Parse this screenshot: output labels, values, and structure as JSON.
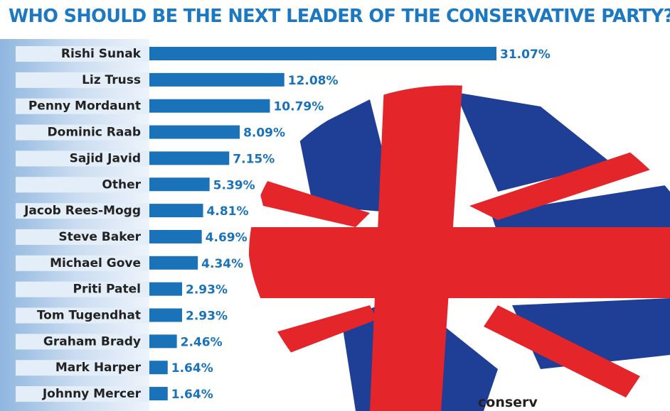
{
  "chart_data": {
    "type": "bar",
    "orientation": "horizontal",
    "title": "WHO SHOULD BE THE NEXT LEADER OF THE CONSERVATIVE PARTY?",
    "categories": [
      "Rishi Sunak",
      "Liz Truss",
      "Penny Mordaunt",
      "Dominic Raab",
      "Sajid Javid",
      "Other",
      "Jacob Rees-Mogg",
      "Steve Baker",
      "Michael Gove",
      "Priti Patel",
      "Tom Tugendhat",
      "Graham Brady",
      "Mark Harper",
      "Johnny Mercer"
    ],
    "values": [
      31.07,
      12.08,
      10.79,
      8.09,
      7.15,
      5.39,
      4.81,
      4.69,
      4.34,
      2.93,
      2.93,
      2.46,
      1.64,
      1.64
    ],
    "value_labels": [
      "31.07%",
      "12.08%",
      "10.79%",
      "8.09%",
      "7.15%",
      "5.39%",
      "4.81%",
      "4.69%",
      "4.34%",
      "2.93%",
      "2.93%",
      "2.46%",
      "1.64%",
      "1.64%"
    ],
    "xlabel": "",
    "ylabel": "",
    "xlim": [
      0,
      31.07
    ],
    "grid": false,
    "legend": "none"
  },
  "watermark": "conserv",
  "colors": {
    "title": "#1c78c0",
    "bar": "#1a72b9",
    "label_text": "#222222",
    "value_text": "#1a72b9",
    "row_bg": "#e4eef8",
    "flag_blue": "#1f3f97",
    "flag_red": "#e4252a"
  },
  "background_image": "union-jack-torch-logo"
}
